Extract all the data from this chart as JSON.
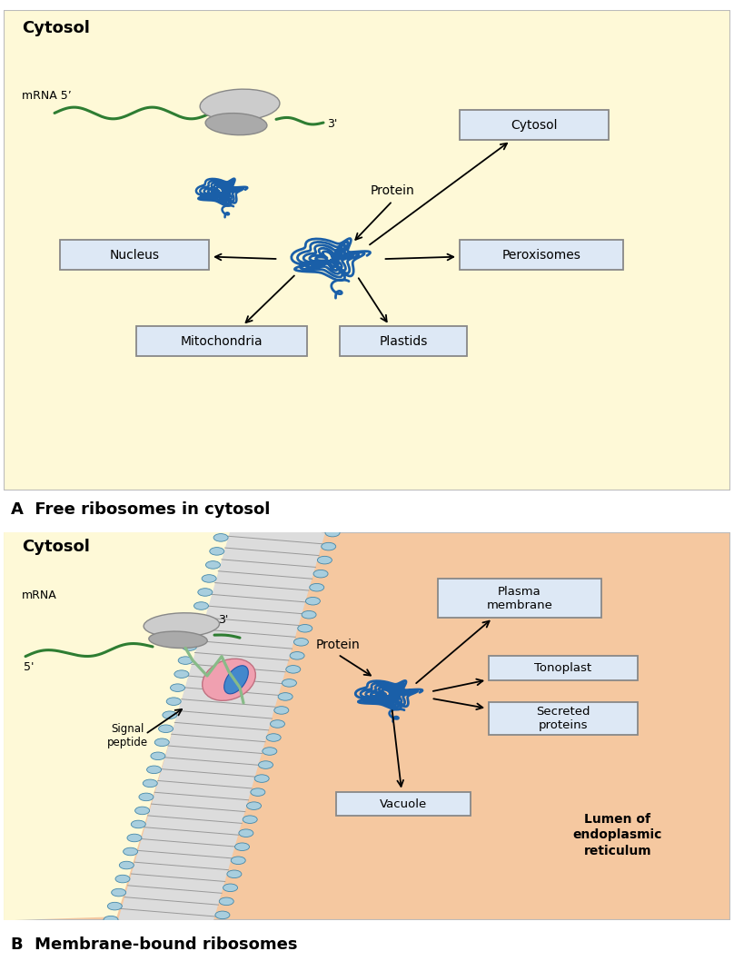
{
  "panel_A_bg": "#FEF9D7",
  "panel_B_bg": "#F5C8A0",
  "panel_B_cytosol_bg": "#FEF9D7",
  "title_A": "A  Free ribosomes in cytosol",
  "title_B": "B  Membrane-bound ribosomes",
  "cytosol_label": "Cytosol",
  "mrna_label_A": "mRNA 5’",
  "mrna_label_B": "mRNA",
  "protein_label_A": "Protein",
  "protein_label_B": "Protein",
  "signal_peptide_label": "Signal\npeptide",
  "lumen_label": "Lumen of\nendoplasmic\nreticulum",
  "ribosome_large_color": "#CCCCCC",
  "ribosome_small_color": "#AAAAAA",
  "mrna_color": "#2E7D32",
  "protein_color": "#1A5FA8",
  "box_face": "#DDE8F5",
  "box_edge": "#888888",
  "membrane_line_color": "#888888",
  "membrane_circle_face": "#A8CEDE",
  "membrane_circle_edge": "#4488AA",
  "membrane_bg": "#DEDEDE",
  "pink_channel": "#F0A0B0",
  "blue_channel": "#4488CC",
  "signal_peptide_color": "#88BB88"
}
